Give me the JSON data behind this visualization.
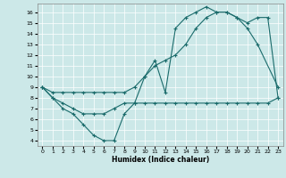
{
  "xlabel": "Humidex (Indice chaleur)",
  "bg_color": "#cce8e8",
  "line_color": "#1a6b6b",
  "xlim": [
    -0.5,
    23.5
  ],
  "ylim": [
    3.5,
    16.8
  ],
  "xticks": [
    0,
    1,
    2,
    3,
    4,
    5,
    6,
    7,
    8,
    9,
    10,
    11,
    12,
    13,
    14,
    15,
    16,
    17,
    18,
    19,
    20,
    21,
    22,
    23
  ],
  "yticks": [
    4,
    5,
    6,
    7,
    8,
    9,
    10,
    11,
    12,
    13,
    14,
    15,
    16
  ],
  "line1_x": [
    0,
    1,
    2,
    3,
    4,
    5,
    6,
    7,
    8,
    9,
    10,
    11,
    12,
    13,
    14,
    15,
    16,
    17,
    18,
    19,
    20,
    21,
    23
  ],
  "line1_y": [
    9,
    8,
    7,
    6.5,
    5.5,
    4.5,
    4,
    4,
    6.5,
    7.5,
    10,
    11.5,
    8.5,
    14.5,
    15.5,
    16,
    16.5,
    16,
    16,
    15.5,
    14.5,
    13,
    9
  ],
  "line2_x": [
    0,
    1,
    2,
    3,
    4,
    5,
    6,
    7,
    8,
    9,
    10,
    11,
    12,
    13,
    14,
    15,
    16,
    17,
    18,
    19,
    20,
    21,
    22,
    23
  ],
  "line2_y": [
    9,
    8,
    7.5,
    7,
    6.5,
    6.5,
    6.5,
    7,
    7.5,
    7.5,
    7.5,
    7.5,
    7.5,
    7.5,
    7.5,
    7.5,
    7.5,
    7.5,
    7.5,
    7.5,
    7.5,
    7.5,
    7.5,
    8
  ],
  "line3_x": [
    0,
    1,
    2,
    3,
    4,
    5,
    6,
    7,
    8,
    9,
    10,
    11,
    12,
    13,
    14,
    15,
    16,
    17,
    18,
    19,
    20,
    21,
    22,
    23
  ],
  "line3_y": [
    9,
    8.5,
    8.5,
    8.5,
    8.5,
    8.5,
    8.5,
    8.5,
    8.5,
    9,
    10,
    11,
    11.5,
    12,
    13,
    14.5,
    15.5,
    16,
    16,
    15.5,
    15,
    15.5,
    15.5,
    8
  ]
}
